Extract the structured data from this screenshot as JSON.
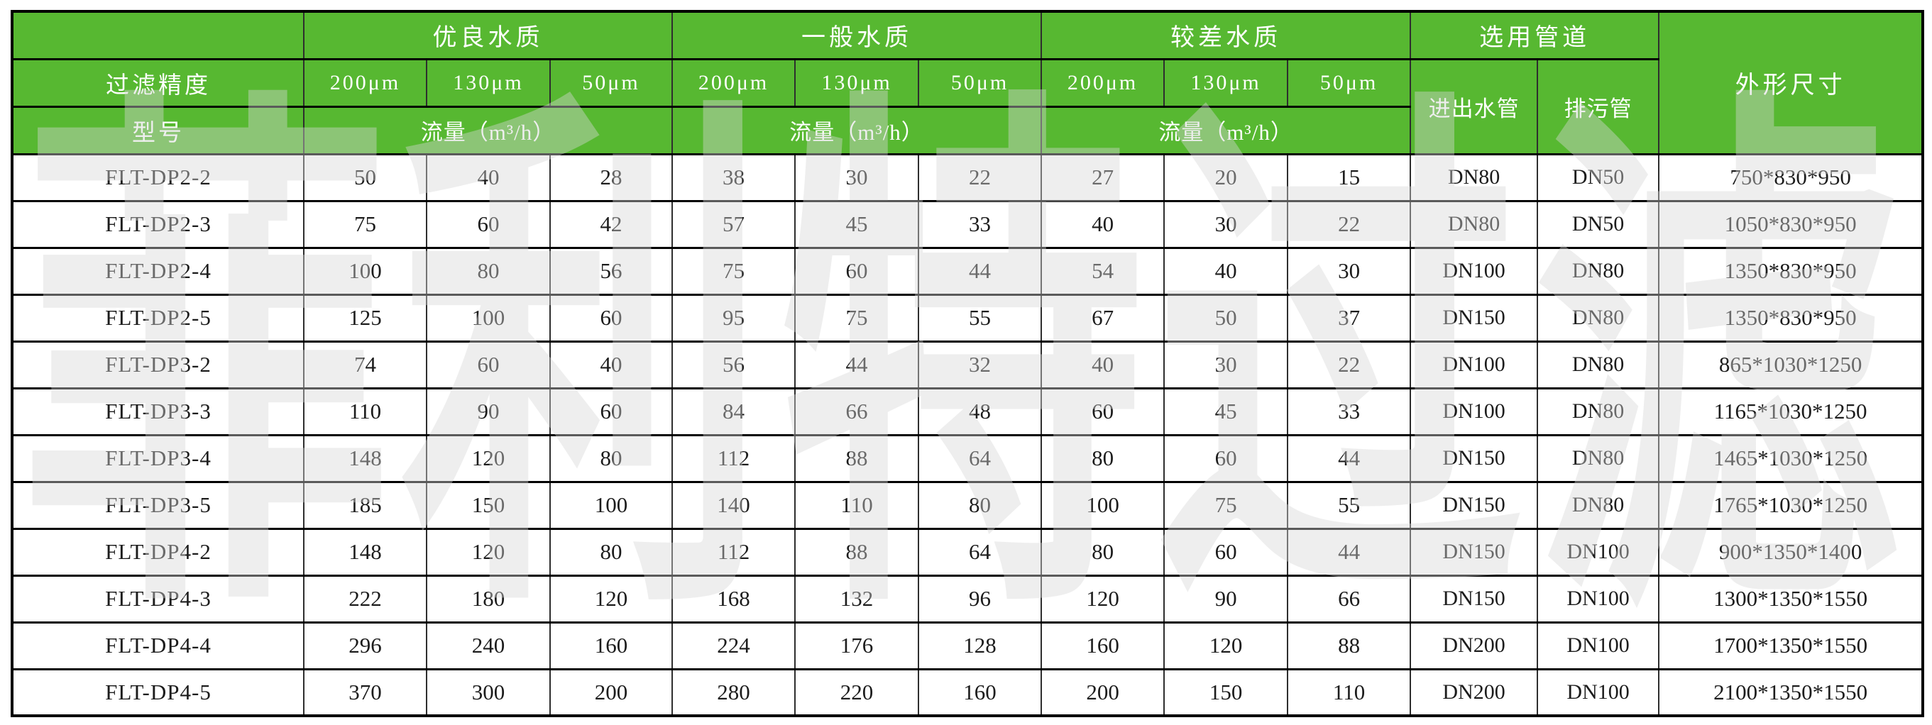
{
  "colors": {
    "header_green": "#57b831",
    "header_text": "#ffffff",
    "body_text": "#1c1c1c",
    "border": "#000000",
    "watermark_gray": "#d6d6d6"
  },
  "watermark": {
    "text": "菲利特过滤"
  },
  "table": {
    "precision_label": "过滤精度",
    "model_label": "型号",
    "groups": [
      {
        "label": "优良水质"
      },
      {
        "label": "一般水质"
      },
      {
        "label": "较差水质"
      }
    ],
    "micron_labels": [
      "200μm",
      "130μm",
      "50μm"
    ],
    "flow_label": "流量（m³/h）",
    "pipe_group_label": "选用管道",
    "inlet_label": "进出水管",
    "drain_label": "排污管",
    "dimensions_label": "外形尺寸",
    "rows": [
      {
        "model": "FLT-DP2-2",
        "flows": [
          50,
          40,
          28,
          38,
          30,
          22,
          27,
          20,
          15
        ],
        "inlet": "DN80",
        "drain": "DN50",
        "dimensions": "750*830*950"
      },
      {
        "model": "FLT-DP2-3",
        "flows": [
          75,
          60,
          42,
          57,
          45,
          33,
          40,
          30,
          22
        ],
        "inlet": "DN80",
        "drain": "DN50",
        "dimensions": "1050*830*950"
      },
      {
        "model": "FLT-DP2-4",
        "flows": [
          100,
          80,
          56,
          75,
          60,
          44,
          54,
          40,
          30
        ],
        "inlet": "DN100",
        "drain": "DN80",
        "dimensions": "1350*830*950"
      },
      {
        "model": "FLT-DP2-5",
        "flows": [
          125,
          100,
          60,
          95,
          75,
          55,
          67,
          50,
          37
        ],
        "inlet": "DN150",
        "drain": "DN80",
        "dimensions": "1350*830*950"
      },
      {
        "model": "FLT-DP3-2",
        "flows": [
          74,
          60,
          40,
          56,
          44,
          32,
          40,
          30,
          22
        ],
        "inlet": "DN100",
        "drain": "DN80",
        "dimensions": "865*1030*1250"
      },
      {
        "model": "FLT-DP3-3",
        "flows": [
          110,
          90,
          60,
          84,
          66,
          48,
          60,
          45,
          33
        ],
        "inlet": "DN100",
        "drain": "DN80",
        "dimensions": "1165*1030*1250"
      },
      {
        "model": "FLT-DP3-4",
        "flows": [
          148,
          120,
          80,
          112,
          88,
          64,
          80,
          60,
          44
        ],
        "inlet": "DN150",
        "drain": "DN80",
        "dimensions": "1465*1030*1250"
      },
      {
        "model": "FLT-DP3-5",
        "flows": [
          185,
          150,
          100,
          140,
          110,
          80,
          100,
          75,
          55
        ],
        "inlet": "DN150",
        "drain": "DN80",
        "dimensions": "1765*1030*1250"
      },
      {
        "model": "FLT-DP4-2",
        "flows": [
          148,
          120,
          80,
          112,
          88,
          64,
          80,
          60,
          44
        ],
        "inlet": "DN150",
        "drain": "DN100",
        "dimensions": "900*1350*1400"
      },
      {
        "model": "FLT-DP4-3",
        "flows": [
          222,
          180,
          120,
          168,
          132,
          96,
          120,
          90,
          66
        ],
        "inlet": "DN150",
        "drain": "DN100",
        "dimensions": "1300*1350*1550"
      },
      {
        "model": "FLT-DP4-4",
        "flows": [
          296,
          240,
          160,
          224,
          176,
          128,
          160,
          120,
          88
        ],
        "inlet": "DN200",
        "drain": "DN100",
        "dimensions": "1700*1350*1550"
      },
      {
        "model": "FLT-DP4-5",
        "flows": [
          370,
          300,
          200,
          280,
          220,
          160,
          200,
          150,
          110
        ],
        "inlet": "DN200",
        "drain": "DN100",
        "dimensions": "2100*1350*1550"
      }
    ]
  }
}
